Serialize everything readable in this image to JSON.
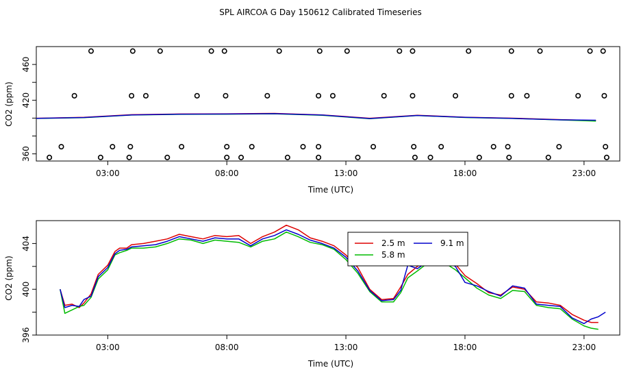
{
  "title": "SPL AIRCOA G  Day 150612  Calibrated Timeseries",
  "chart_data": [
    {
      "type": "scatter+line",
      "xlabel": "Time (UTC)",
      "ylabel": "CO2 (ppm)",
      "xlim": [
        0,
        24.5
      ],
      "ylim": [
        352,
        480
      ],
      "x_ticks": [
        {
          "v": 3,
          "label": "03:00"
        },
        {
          "v": 8,
          "label": "08:00"
        },
        {
          "v": 13,
          "label": "13:00"
        },
        {
          "v": 18,
          "label": "18:00"
        },
        {
          "v": 23,
          "label": "23:00"
        }
      ],
      "y_ticks": [
        {
          "v": 360,
          "label": "360"
        },
        {
          "v": 380,
          "label": ""
        },
        {
          "v": 400,
          "label": ""
        },
        {
          "v": 420,
          "label": "420"
        },
        {
          "v": 440,
          "label": ""
        },
        {
          "v": 460,
          "label": "460"
        }
      ],
      "cal_points": [
        [
          2.3,
          475
        ],
        [
          4.05,
          475
        ],
        [
          5.2,
          475
        ],
        [
          7.35,
          475
        ],
        [
          7.9,
          475
        ],
        [
          10.2,
          475
        ],
        [
          11.9,
          475
        ],
        [
          13.05,
          475
        ],
        [
          15.25,
          475
        ],
        [
          15.8,
          475
        ],
        [
          18.15,
          475
        ],
        [
          19.95,
          475
        ],
        [
          21.15,
          475
        ],
        [
          23.25,
          475
        ],
        [
          23.8,
          475
        ],
        [
          1.6,
          425
        ],
        [
          4.0,
          425
        ],
        [
          4.6,
          425
        ],
        [
          6.75,
          425
        ],
        [
          7.95,
          425
        ],
        [
          9.7,
          425
        ],
        [
          11.85,
          425
        ],
        [
          12.45,
          425
        ],
        [
          14.6,
          425
        ],
        [
          15.8,
          425
        ],
        [
          17.6,
          425
        ],
        [
          19.95,
          425
        ],
        [
          20.6,
          425
        ],
        [
          22.75,
          425
        ],
        [
          23.85,
          425
        ],
        [
          1.05,
          368
        ],
        [
          3.2,
          368
        ],
        [
          3.95,
          368
        ],
        [
          6.1,
          368
        ],
        [
          8.0,
          368
        ],
        [
          9.05,
          368
        ],
        [
          11.2,
          368
        ],
        [
          11.85,
          368
        ],
        [
          14.15,
          368
        ],
        [
          15.85,
          368
        ],
        [
          17.0,
          368
        ],
        [
          19.2,
          368
        ],
        [
          19.8,
          368
        ],
        [
          21.95,
          368
        ],
        [
          23.9,
          368
        ],
        [
          0.55,
          356
        ],
        [
          2.7,
          356
        ],
        [
          3.9,
          356
        ],
        [
          5.5,
          356
        ],
        [
          8.0,
          356
        ],
        [
          8.6,
          356
        ],
        [
          10.55,
          356
        ],
        [
          11.85,
          356
        ],
        [
          13.5,
          356
        ],
        [
          15.9,
          356
        ],
        [
          16.55,
          356
        ],
        [
          18.6,
          356
        ],
        [
          19.85,
          356
        ],
        [
          21.5,
          356
        ],
        [
          23.95,
          356
        ]
      ],
      "series": [
        {
          "name": "2.5 m",
          "color": "#ff0000",
          "x": [
            0,
            2,
            4,
            6,
            8,
            10,
            12,
            14,
            16,
            18,
            20,
            22,
            23.5
          ],
          "y": [
            399.8,
            400.9,
            403.8,
            404.6,
            404.8,
            405.3,
            403.6,
            399.8,
            403.2,
            401.0,
            399.9,
            398.3,
            397.2
          ]
        },
        {
          "name": "5.8 m",
          "color": "#00cc00",
          "x": [
            0,
            2,
            4,
            6,
            8,
            10,
            12,
            14,
            16,
            18,
            20,
            22,
            23.5
          ],
          "y": [
            399.6,
            400.5,
            403.4,
            404.2,
            404.4,
            404.8,
            403.2,
            399.3,
            402.9,
            400.7,
            399.6,
            398.0,
            396.6
          ]
        },
        {
          "name": "9.1 m",
          "color": "#0000cc",
          "x": [
            0,
            2,
            4,
            6,
            8,
            10,
            12,
            14,
            16,
            18,
            20,
            22,
            23.5
          ],
          "y": [
            399.7,
            400.7,
            403.6,
            404.4,
            404.6,
            405.0,
            403.4,
            399.5,
            403.0,
            400.8,
            399.7,
            398.1,
            397.6
          ]
        }
      ]
    },
    {
      "type": "line",
      "xlabel": "Time (UTC)",
      "ylabel": "CO2 (ppm)",
      "xlim": [
        0,
        24.5
      ],
      "ylim": [
        396,
        406
      ],
      "x_ticks": [
        {
          "v": 3,
          "label": "03:00"
        },
        {
          "v": 8,
          "label": "08:00"
        },
        {
          "v": 13,
          "label": "13:00"
        },
        {
          "v": 18,
          "label": "18:00"
        },
        {
          "v": 23,
          "label": "23:00"
        }
      ],
      "y_ticks": [
        {
          "v": 396,
          "label": "396"
        },
        {
          "v": 398,
          "label": ""
        },
        {
          "v": 400,
          "label": "400"
        },
        {
          "v": 402,
          "label": ""
        },
        {
          "v": 404,
          "label": "404"
        }
      ],
      "legend_position": "center-right",
      "series": [
        {
          "name": "2.5 m",
          "color": "#dd0000",
          "x": [
            1.0,
            1.2,
            1.5,
            1.8,
            2.0,
            2.3,
            2.6,
            3.0,
            3.3,
            3.5,
            3.8,
            4.0,
            4.5,
            5.0,
            5.5,
            6.0,
            6.5,
            7.0,
            7.5,
            8.0,
            8.5,
            9.0,
            9.5,
            10.0,
            10.5,
            11.0,
            11.5,
            12.0,
            12.5,
            13.0,
            13.5,
            14.0,
            14.5,
            15.0,
            15.3,
            15.6,
            16.0,
            16.5,
            17.0,
            17.3,
            17.6,
            18.0,
            18.5,
            19.0,
            19.5,
            20.0,
            20.5,
            21.0,
            21.5,
            22.0,
            22.5,
            23.0,
            23.3,
            23.6
          ],
          "y": [
            400.0,
            398.6,
            398.7,
            398.4,
            398.8,
            399.6,
            401.3,
            402.1,
            403.3,
            403.6,
            403.6,
            403.9,
            404.0,
            404.2,
            404.4,
            404.8,
            404.6,
            404.4,
            404.7,
            404.6,
            404.7,
            404.0,
            404.6,
            405.0,
            405.6,
            405.2,
            404.5,
            404.2,
            403.8,
            403.0,
            401.9,
            400.0,
            399.1,
            399.2,
            400.2,
            401.3,
            402.0,
            402.6,
            402.8,
            402.5,
            402.2,
            401.2,
            400.5,
            399.7,
            399.5,
            400.2,
            400.0,
            398.9,
            398.8,
            398.6,
            397.8,
            397.3,
            397.1,
            397.1
          ]
        },
        {
          "name": "5.8 m",
          "color": "#00bb00",
          "x": [
            1.0,
            1.2,
            1.5,
            1.8,
            2.0,
            2.3,
            2.6,
            3.0,
            3.3,
            3.5,
            3.8,
            4.0,
            4.5,
            5.0,
            5.5,
            6.0,
            6.5,
            7.0,
            7.5,
            8.0,
            8.5,
            9.0,
            9.5,
            10.0,
            10.5,
            11.0,
            11.5,
            12.0,
            12.5,
            13.0,
            13.5,
            14.0,
            14.5,
            15.0,
            15.3,
            15.6,
            16.0,
            16.5,
            17.0,
            17.3,
            17.6,
            18.0,
            18.5,
            19.0,
            19.5,
            20.0,
            20.5,
            21.0,
            21.5,
            22.0,
            22.5,
            23.0,
            23.3,
            23.6
          ],
          "y": [
            400.0,
            397.9,
            398.2,
            398.5,
            398.6,
            399.3,
            400.9,
            401.7,
            403.0,
            403.2,
            403.4,
            403.6,
            403.6,
            403.7,
            404.0,
            404.4,
            404.3,
            404.0,
            404.3,
            404.2,
            404.1,
            403.7,
            404.2,
            404.4,
            405.0,
            404.6,
            404.1,
            403.9,
            403.5,
            402.6,
            401.4,
            399.8,
            398.9,
            398.9,
            399.7,
            401.0,
            401.6,
            402.4,
            402.6,
            402.1,
            401.7,
            401.0,
            400.1,
            399.5,
            399.2,
            399.9,
            399.8,
            398.6,
            398.4,
            398.3,
            397.4,
            396.8,
            396.6,
            396.5
          ]
        },
        {
          "name": "9.1 m",
          "color": "#0000cc",
          "x": [
            1.0,
            1.2,
            1.5,
            1.8,
            2.0,
            2.3,
            2.6,
            3.0,
            3.3,
            3.5,
            3.8,
            4.0,
            4.5,
            5.0,
            5.5,
            6.0,
            6.5,
            7.0,
            7.5,
            8.0,
            8.5,
            9.0,
            9.5,
            10.0,
            10.5,
            11.0,
            11.5,
            12.0,
            12.5,
            13.0,
            13.5,
            14.0,
            14.5,
            15.0,
            15.3,
            15.6,
            16.0,
            16.5,
            17.0,
            17.3,
            17.6,
            18.0,
            18.5,
            19.0,
            19.5,
            20.0,
            20.5,
            21.0,
            21.5,
            22.0,
            22.5,
            23.0,
            23.3,
            23.6,
            23.9
          ],
          "y": [
            400.0,
            398.4,
            398.6,
            398.5,
            399.1,
            399.4,
            401.1,
            401.9,
            403.1,
            403.4,
            403.5,
            403.7,
            403.8,
            403.9,
            404.2,
            404.6,
            404.4,
            404.2,
            404.5,
            404.4,
            404.4,
            403.8,
            404.4,
            404.7,
            405.2,
            404.8,
            404.3,
            404.0,
            403.6,
            402.8,
            401.6,
            399.9,
            399.0,
            399.1,
            399.9,
            402.1,
            401.8,
            402.5,
            403.0,
            402.3,
            402.0,
            400.6,
            400.3,
            399.8,
            399.4,
            400.3,
            400.1,
            398.7,
            398.6,
            398.5,
            397.5,
            397.0,
            397.4,
            397.6,
            398.0
          ]
        }
      ]
    }
  ]
}
